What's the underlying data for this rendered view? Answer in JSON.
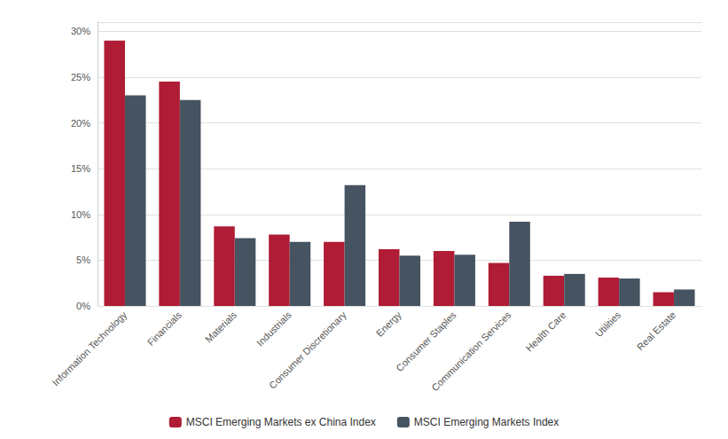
{
  "chart_data": {
    "type": "bar",
    "categories": [
      "Information Technology",
      "Financials",
      "Materials",
      "Industrials",
      "Consumer Discretionary",
      "Energy",
      "Consumer Staples",
      "Communication Services",
      "Health Care",
      "Utilities",
      "Real Estate"
    ],
    "series": [
      {
        "name": "MSCI Emerging Markets ex China Index",
        "color": "#b01c35",
        "values": [
          29.0,
          24.5,
          8.7,
          7.8,
          7.0,
          6.2,
          6.0,
          4.7,
          3.3,
          3.1,
          1.5
        ]
      },
      {
        "name": "MSCI Emerging Markets Index",
        "color": "#465461",
        "values": [
          23.0,
          22.5,
          7.4,
          7.0,
          13.2,
          5.5,
          5.6,
          9.2,
          3.5,
          3.0,
          1.8
        ]
      }
    ],
    "ylim": [
      0,
      31
    ],
    "yticks": [
      {
        "value": 0,
        "label": "0%"
      },
      {
        "value": 5,
        "label": "5%"
      },
      {
        "value": 10,
        "label": "10%"
      },
      {
        "value": 15,
        "label": "15%"
      },
      {
        "value": 20,
        "label": "20%"
      },
      {
        "value": 25,
        "label": "25%"
      },
      {
        "value": 30,
        "label": "30%"
      }
    ],
    "grid": true,
    "legend": "bottom"
  }
}
